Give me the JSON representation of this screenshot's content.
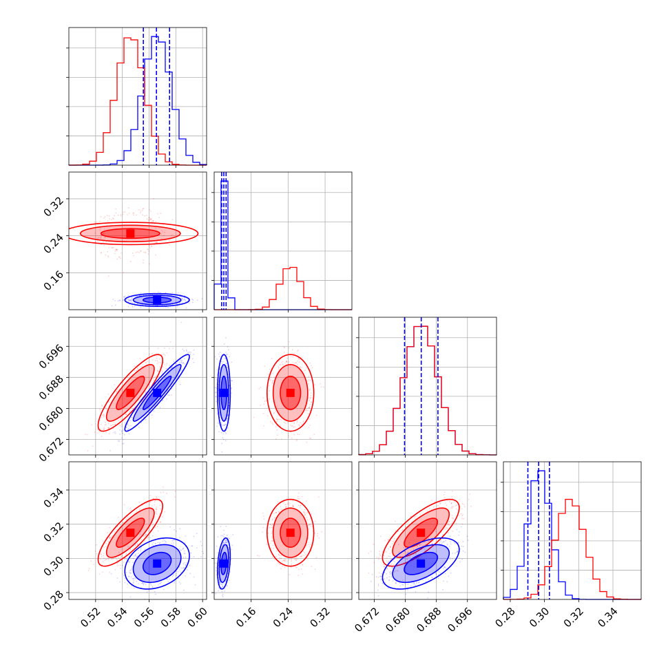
{
  "chart_data": {
    "type": "corner",
    "grid": true,
    "colors": {
      "series_a": "#ff0000",
      "series_b": "#0000ff",
      "grid": "#b0b0b0",
      "quantile_line": "#0000ff"
    },
    "parameters": [
      {
        "id": "p1",
        "range": [
          0.5,
          0.603
        ],
        "ticks": [
          "0.52",
          "0.54",
          "0.56",
          "0.58",
          "0.60"
        ]
      },
      {
        "id": "p2",
        "range": [
          0.08,
          0.378
        ],
        "ticks": [
          "0.16",
          "0.24",
          "0.32"
        ]
      },
      {
        "id": "p3",
        "range": [
          0.668,
          0.7035
        ],
        "ticks": [
          "0.672",
          "0.680",
          "0.688",
          "0.696"
        ]
      },
      {
        "id": "p4",
        "range": [
          0.276,
          0.3565
        ],
        "ticks": [
          "0.28",
          "0.30",
          "0.32",
          "0.34"
        ]
      }
    ],
    "series": [
      {
        "id": "red",
        "color": "#ff0000",
        "means": [
          0.546,
          0.245,
          0.684,
          0.315
        ],
        "stds": [
          0.0105,
          0.022,
          0.0043,
          0.0085
        ],
        "correlations": {
          "p1-p2": 0.0,
          "p1-p3": 0.85,
          "p1-p4": 0.8,
          "p2-p3": 0.0,
          "p2-p4": 0.0,
          "p3-p4": 0.75
        }
      },
      {
        "id": "blue",
        "color": "#0000ff",
        "means": [
          0.566,
          0.101,
          0.684,
          0.297
        ],
        "stds": [
          0.0105,
          0.006,
          0.0043,
          0.0065
        ],
        "correlations": {
          "p1-p2": 0.0,
          "p1-p3": 0.95,
          "p1-p4": 0.3,
          "p2-p3": 0.0,
          "p2-p4": 0.3,
          "p3-p4": 0.55
        }
      }
    ],
    "quantiles": [
      0.16,
      0.5,
      0.84
    ],
    "quantile_lines": {
      "p1": [
        0.5557,
        0.5655,
        0.5753
      ],
      "p2": [
        0.0962,
        0.1008,
        0.1058
      ],
      "p3": [
        0.6798,
        0.6841,
        0.6884
      ],
      "p4": [
        0.2903,
        0.2966,
        0.3029
      ]
    },
    "xlabel": "",
    "ylabel": "",
    "title": ""
  }
}
